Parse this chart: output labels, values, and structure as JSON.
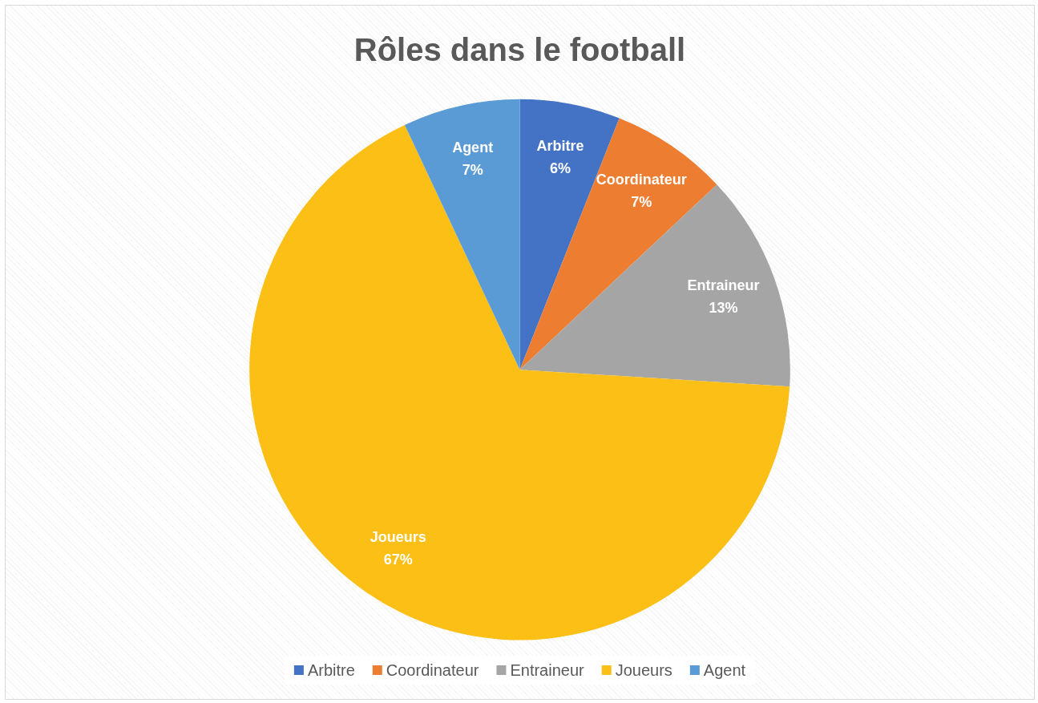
{
  "chart_data": {
    "type": "pie",
    "title": "Rôles dans le football",
    "categories": [
      "Arbitre",
      "Coordinateur",
      "Entraineur",
      "Joueurs",
      "Agent"
    ],
    "values": [
      6,
      7,
      13,
      67,
      7
    ],
    "value_labels": [
      "6%",
      "7%",
      "13%",
      "67%",
      "7%"
    ],
    "colors": [
      "#4472c4",
      "#ed7d31",
      "#a5a5a5",
      "#fbbf16",
      "#5b9bd5"
    ],
    "legend": "bottom"
  }
}
